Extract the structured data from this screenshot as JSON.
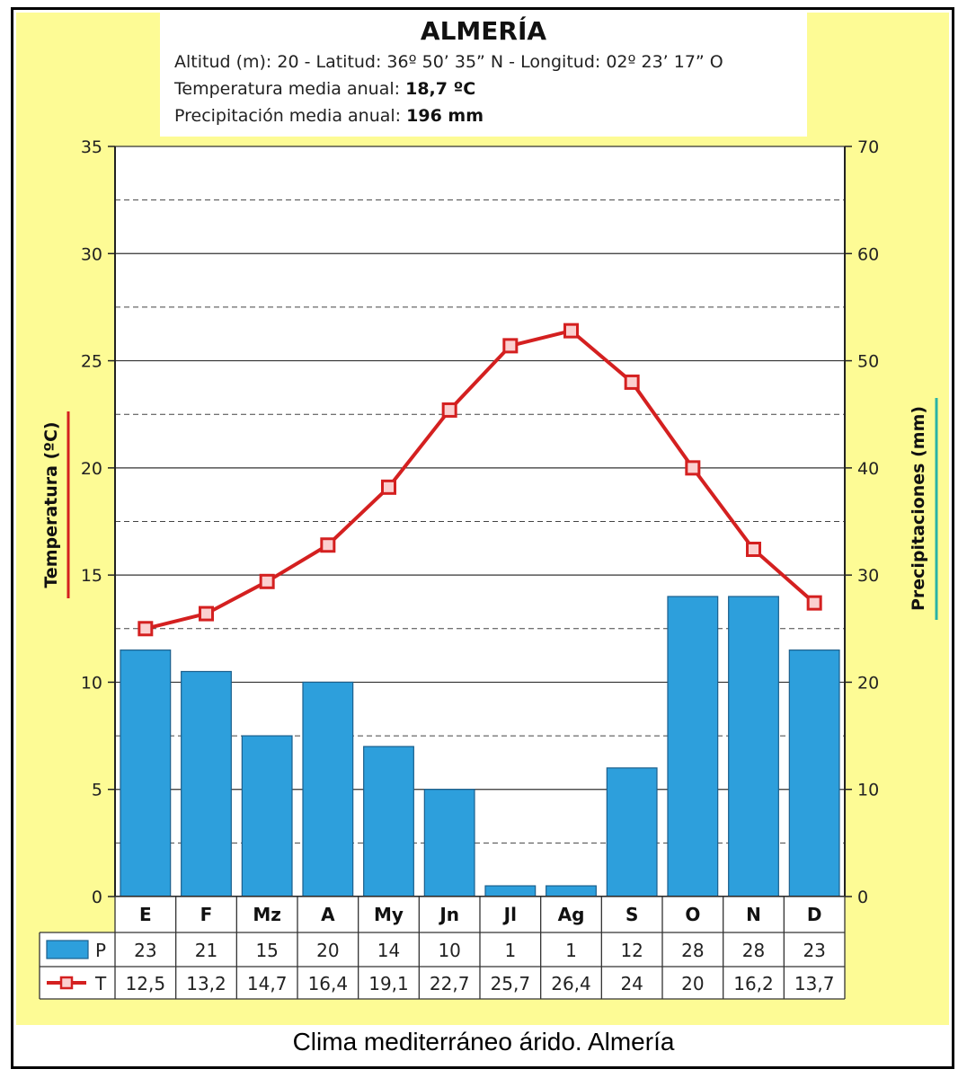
{
  "header": {
    "title": "ALMERÍA",
    "location_line": "Altitud (m): 20 - Latitud: 36º 50’ 35” N - Longitud: 02º 23’ 17” O",
    "temp_label": "Temperatura media anual:",
    "temp_value": "18,7 ºC",
    "precip_label": "Precipitación media anual:",
    "precip_value": "196 mm"
  },
  "caption": "Clima mediterráneo árido. Almería",
  "colors": {
    "background": "#fdfb95",
    "bar_fill": "#2d9fdc",
    "bar_stroke": "#1b5f8c",
    "line": "#d42020",
    "temp_axis_accent": "#d42020",
    "precip_axis_accent": "#2ab3a6"
  },
  "chart_data": {
    "type": "bar",
    "categories": [
      "E",
      "F",
      "Mz",
      "A",
      "My",
      "Jn",
      "Jl",
      "Ag",
      "S",
      "O",
      "N",
      "D"
    ],
    "series": [
      {
        "name": "P",
        "type": "bar",
        "axis": "right",
        "values": [
          23,
          21,
          15,
          20,
          14,
          10,
          1,
          1,
          12,
          28,
          28,
          23
        ],
        "labels": [
          "23",
          "21",
          "15",
          "20",
          "14",
          "10",
          "1",
          "1",
          "12",
          "28",
          "28",
          "23"
        ]
      },
      {
        "name": "T",
        "type": "line",
        "axis": "left",
        "values": [
          12.5,
          13.2,
          14.7,
          16.4,
          19.1,
          22.7,
          25.7,
          26.4,
          24,
          20,
          16.2,
          13.7
        ],
        "labels": [
          "12,5",
          "13,2",
          "14,7",
          "16,4",
          "19,1",
          "22,7",
          "25,7",
          "26,4",
          "24",
          "20",
          "16,2",
          "13,7"
        ]
      }
    ],
    "ylabel": "Temperatura (ºC)",
    "ylim": [
      0,
      35
    ],
    "yticks": [
      "0",
      "5",
      "10",
      "15",
      "20",
      "25",
      "30",
      "35"
    ],
    "y2label": "Precipitaciones (mm)",
    "y2lim": [
      0,
      70
    ],
    "y2ticks": [
      "0",
      "10",
      "20",
      "30",
      "40",
      "50",
      "60",
      "70"
    ],
    "grid": true,
    "legend": "data-table-bottom"
  }
}
